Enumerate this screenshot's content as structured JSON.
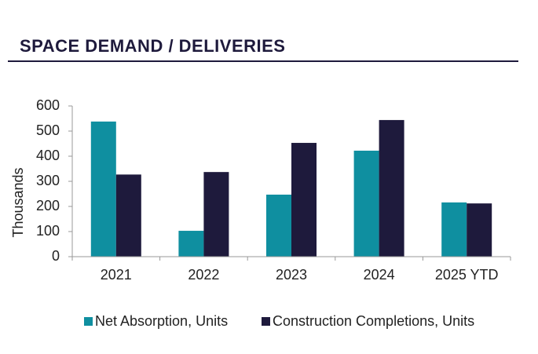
{
  "chart_data": {
    "type": "bar",
    "title": "SPACE DEMAND / DELIVERIES",
    "y_label": "Thousands",
    "categories": [
      "2021",
      "2022",
      "2023",
      "2024",
      "2025 YTD"
    ],
    "series": [
      {
        "name": "Net Absorption, Units",
        "color": "#0f8fa0",
        "values": [
          538,
          103,
          247,
          422,
          216
        ]
      },
      {
        "name": "Construction Completions, Units",
        "color": "#1e1a3c",
        "values": [
          327,
          337,
          453,
          544,
          212
        ]
      }
    ],
    "ylim": [
      0,
      600
    ],
    "yticks": [
      0,
      100,
      200,
      300,
      400,
      500,
      600
    ],
    "grid": false,
    "legend": "bottom"
  }
}
